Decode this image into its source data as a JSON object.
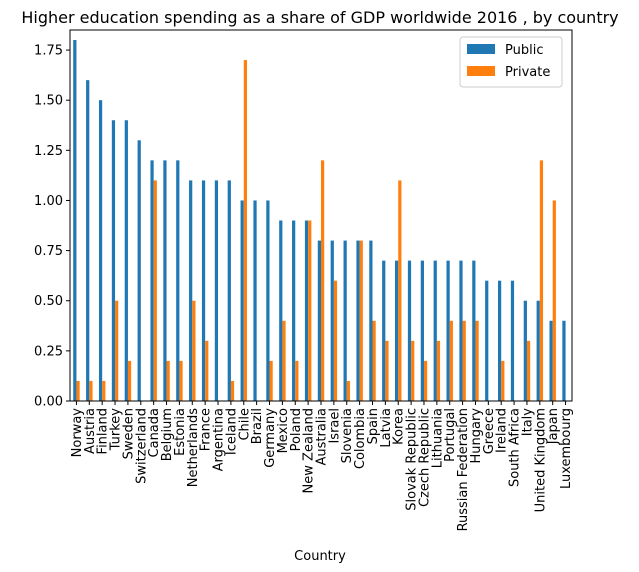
{
  "chart_data": {
    "type": "bar",
    "title": "Higher education spending as a share of GDP worldwide 2016 , by country",
    "xlabel": "Country",
    "ylabel": "",
    "ylim": [
      0,
      1.85
    ],
    "yticks": [
      "0.00",
      "0.25",
      "0.50",
      "0.75",
      "1.00",
      "1.25",
      "1.50",
      "1.75"
    ],
    "grid": false,
    "legend_position": "top-right",
    "categories": [
      "Norway",
      "Austria",
      "Finland",
      "Turkey",
      "Sweden",
      "Switzerland",
      "Canada",
      "Belgium",
      "Estonia",
      "Netherlands",
      "France",
      "Argentina",
      "Iceland",
      "Chile",
      "Brazil",
      "Germany",
      "Mexico",
      "Poland",
      "New Zealand",
      "Australia",
      "Israel",
      "Slovenia",
      "Colombia",
      "Spain",
      "Latvia",
      "Korea",
      "Slovak Republic",
      "Czech Republic",
      "Lithuania",
      "Portugal",
      "Russian Federation",
      "Hungary",
      "Greece",
      "Ireland",
      "South Africa",
      "Italy",
      "United Kingdom",
      "Japan",
      "Luxembourg"
    ],
    "series": [
      {
        "name": "Public",
        "color": "#1f77b4",
        "values": [
          1.8,
          1.6,
          1.5,
          1.4,
          1.4,
          1.3,
          1.2,
          1.2,
          1.2,
          1.1,
          1.1,
          1.1,
          1.1,
          1.0,
          1.0,
          1.0,
          0.9,
          0.9,
          0.9,
          0.8,
          0.8,
          0.8,
          0.8,
          0.8,
          0.7,
          0.7,
          0.7,
          0.7,
          0.7,
          0.7,
          0.7,
          0.7,
          0.6,
          0.6,
          0.6,
          0.5,
          0.5,
          0.4,
          0.4
        ]
      },
      {
        "name": "Private",
        "color": "#ff7f0e",
        "values": [
          0.1,
          0.1,
          0.1,
          0.5,
          0.2,
          0.0,
          1.1,
          0.2,
          0.2,
          0.5,
          0.3,
          0.0,
          0.1,
          1.7,
          0.0,
          0.2,
          0.4,
          0.2,
          0.9,
          1.2,
          0.6,
          0.1,
          0.8,
          0.4,
          0.3,
          1.1,
          0.3,
          0.2,
          0.3,
          0.4,
          0.4,
          0.4,
          0.0,
          0.2,
          0.0,
          0.3,
          1.2,
          1.0,
          0.0
        ]
      }
    ]
  }
}
